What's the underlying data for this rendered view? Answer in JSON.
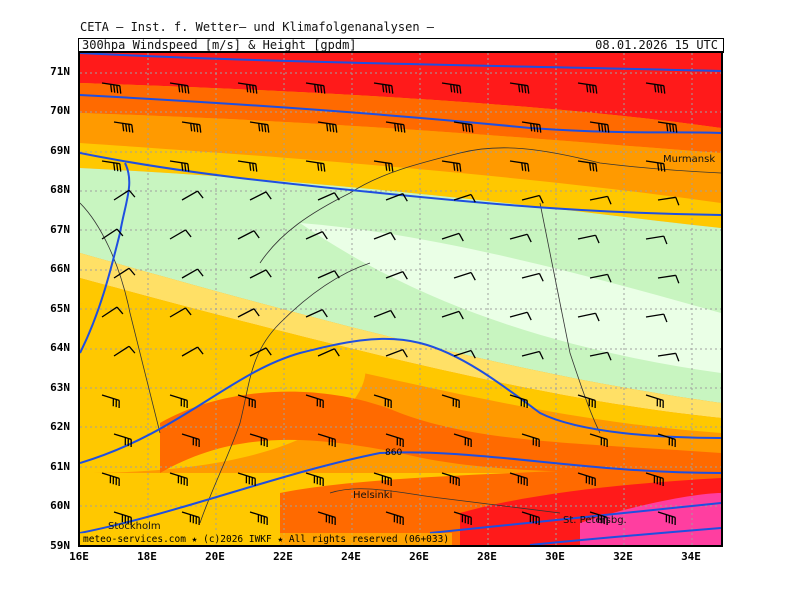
{
  "header": {
    "line1": "CETA — Inst. f. Wetter— und Klimafolgenanalysen —",
    "product": "300hpa_Windspeed_[m/s]_&_Height_[gpdm]",
    "valid_time": "08.01.2026 15 UTC"
  },
  "map": {
    "lat_labels": [
      "71N",
      "70N",
      "69N",
      "68N",
      "67N",
      "66N",
      "65N",
      "64N",
      "63N",
      "62N",
      "61N",
      "60N",
      "59N"
    ],
    "lon_labels": [
      "16E",
      "18E",
      "20E",
      "22E",
      "24E",
      "26E",
      "28E",
      "30E",
      "32E",
      "34E"
    ],
    "cities": [
      {
        "name": "Murmansk"
      },
      {
        "name": "Helsinki"
      },
      {
        "name": "Stockholm"
      },
      {
        "name": "St. Petersbg."
      }
    ],
    "contour_label": "860",
    "footer": "meteo-services.com ★ (c)2026 IWKF ★ All rights reserved (06+033)",
    "colors": {
      "jet_core": "#ff1a1a",
      "strong": "#ff6a00",
      "moderate": "#ff9a00",
      "light": "#ffc800",
      "weak": "#ffe066",
      "calm": "#c8f5c0",
      "very_calm": "#eaffe6",
      "max": "#ff3ea0",
      "contour": "#1f4fe0"
    }
  }
}
